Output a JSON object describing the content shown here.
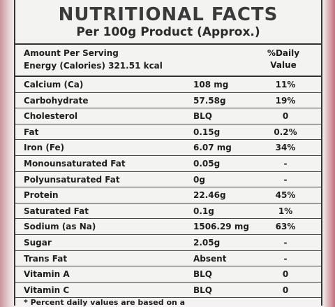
{
  "title": "NUTRITIONAL FACTS",
  "subtitle": "Per 100g Product (Approx.)",
  "header": {
    "amount": "Amount Per Serving",
    "energy": "Energy (Calories) 321.51 kcal",
    "daily_value": [
      "%Daily",
      "Value"
    ]
  },
  "table": {
    "rows": [
      [
        "Calcium (Ca)",
        "108 mg",
        "11%"
      ],
      [
        "Carbohydrate",
        "57.58g",
        "19%"
      ],
      [
        "Cholesterol",
        "BLQ",
        "0"
      ],
      [
        "Fat",
        "0.15g",
        "0.2%"
      ],
      [
        "Iron (Fe)",
        "6.07 mg",
        "34%"
      ],
      [
        "Monounsaturated Fat",
        "0.05g",
        "-"
      ],
      [
        "Polyunsaturated Fat",
        "0g",
        "-"
      ],
      [
        "Protein",
        "22.46g",
        "45%"
      ],
      [
        "Saturated Fat",
        "0.1g",
        "1%"
      ],
      [
        "Sodium (as Na)",
        "1506.29 mg",
        "63%"
      ],
      [
        "Sugar",
        "2.05g",
        "-"
      ],
      [
        "Trans Fat",
        "Absent",
        "-"
      ],
      [
        "Vitamin A",
        "BLQ",
        "0"
      ],
      [
        "Vitamin C",
        "BLQ",
        "0"
      ]
    ]
  },
  "footnote": "* Percent daily values are based on a"
}
